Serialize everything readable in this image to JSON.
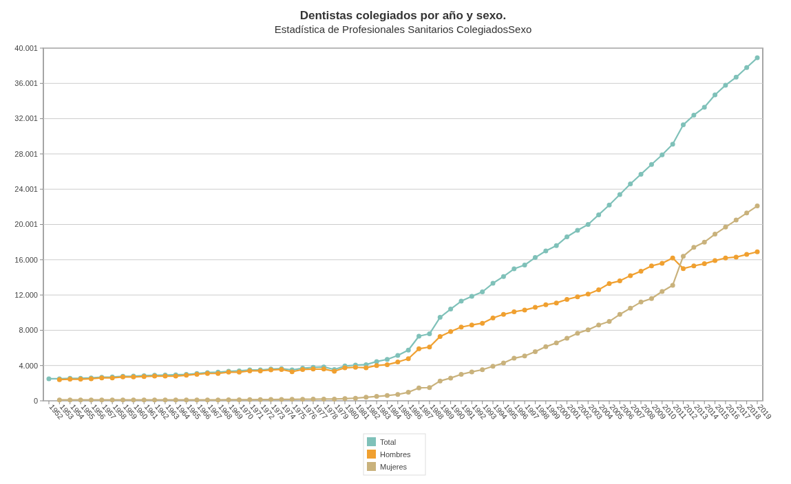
{
  "chart_data": {
    "type": "line",
    "title": "Dentistas colegiados por año y sexo.",
    "subtitle": "Estadística de Profesionales Sanitarios ColegiadosSexo",
    "categories": [
      "1952",
      "1953",
      "1954",
      "1955",
      "1956",
      "1957",
      "1958",
      "1959",
      "1960",
      "1961",
      "1962",
      "1963",
      "1964",
      "1965",
      "1966",
      "1967",
      "1968",
      "1969",
      "1970",
      "1971",
      "1972",
      "1973",
      "1974",
      "1975",
      "1976",
      "1977",
      "1978",
      "1979",
      "1980",
      "1981",
      "1982",
      "1983",
      "1984",
      "1985",
      "1986",
      "1987",
      "1988",
      "1989",
      "1990",
      "1991",
      "1992",
      "1993",
      "1994",
      "1995",
      "1996",
      "1997",
      "1998",
      "1999",
      "2000",
      "2001",
      "2002",
      "2003",
      "2004",
      "2005",
      "2006",
      "2007",
      "2008",
      "2009",
      "2010",
      "2011",
      "2012",
      "2013",
      "2014",
      "2015",
      "2016",
      "2017",
      "2018",
      "2019"
    ],
    "series": [
      {
        "name": "Total",
        "color": "#7fc1b9",
        "values": [
          2500,
          2500,
          2550,
          2560,
          2600,
          2680,
          2700,
          2780,
          2800,
          2850,
          2900,
          2920,
          2950,
          3000,
          3100,
          3200,
          3250,
          3350,
          3400,
          3500,
          3500,
          3600,
          3650,
          3500,
          3700,
          3800,
          3850,
          3550,
          3950,
          4050,
          4100,
          4450,
          4700,
          5150,
          5750,
          7330,
          7600,
          9470,
          10400,
          11300,
          11860,
          12360,
          13330,
          14100,
          14970,
          15400,
          16250,
          17000,
          17600,
          18600,
          19340,
          20000,
          21100,
          22200,
          23400,
          24600,
          25700,
          26800,
          27900,
          29100,
          31300,
          32400,
          33300,
          34700,
          35800,
          36700,
          37800,
          38900
        ]
      },
      {
        "name": "Hombres",
        "color": "#f0a030",
        "values": [
          null,
          2400,
          2450,
          2450,
          2500,
          2600,
          2600,
          2700,
          2700,
          2750,
          2800,
          2800,
          2800,
          2900,
          3000,
          3100,
          3100,
          3250,
          3250,
          3400,
          3400,
          3500,
          3550,
          3300,
          3550,
          3600,
          3600,
          3350,
          3750,
          3800,
          3750,
          4000,
          4100,
          4400,
          4780,
          5900,
          6100,
          7300,
          7860,
          8360,
          8600,
          8800,
          9400,
          9800,
          10100,
          10300,
          10600,
          10900,
          11100,
          11500,
          11800,
          12100,
          12600,
          13300,
          13600,
          14200,
          14700,
          15300,
          15600,
          16200,
          15000,
          15300,
          15550,
          15900,
          16200,
          16300,
          16600,
          16900
        ]
      },
      {
        "name": "Mujeres",
        "color": "#c9b27c",
        "values": [
          null,
          100,
          100,
          100,
          100,
          100,
          100,
          100,
          100,
          100,
          100,
          100,
          100,
          100,
          100,
          100,
          100,
          120,
          120,
          130,
          140,
          150,
          160,
          170,
          180,
          190,
          200,
          200,
          250,
          300,
          400,
          500,
          600,
          720,
          970,
          1470,
          1500,
          2250,
          2580,
          3000,
          3280,
          3530,
          3920,
          4280,
          4830,
          5080,
          5580,
          6140,
          6560,
          7100,
          7670,
          8060,
          8600,
          9000,
          9800,
          10500,
          11200,
          11600,
          12400,
          13100,
          16400,
          17400,
          18000,
          18900,
          19700,
          20500,
          21300,
          22100
        ]
      }
    ],
    "ylim": [
      0,
      40001
    ],
    "yticks": [
      0,
      {
        "value": 4000,
        "label": "4.000"
      },
      {
        "value": 8000,
        "label": "8.000"
      },
      {
        "value": 12000,
        "label": "12.000"
      },
      {
        "value": 16000,
        "label": "16.000"
      },
      {
        "value": 20001,
        "label": "20.001"
      },
      {
        "value": 24001,
        "label": "24.001"
      },
      {
        "value": 28001,
        "label": "28.001"
      },
      {
        "value": 32001,
        "label": "32.001"
      },
      {
        "value": 36001,
        "label": "36.001"
      },
      {
        "value": 40001,
        "label": "40.001"
      }
    ],
    "grid": "y",
    "legend": "bottom",
    "marker": "circle",
    "line_style": "solid"
  }
}
